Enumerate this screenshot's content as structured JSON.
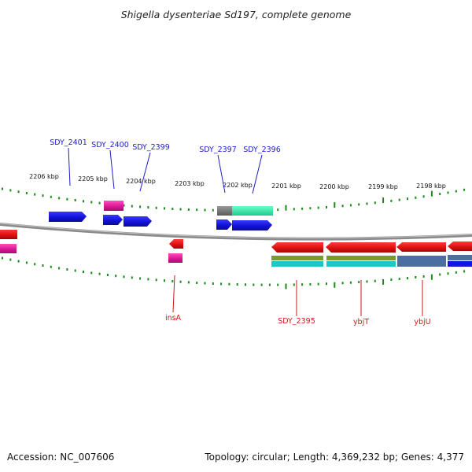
{
  "title": "Shigella dysenteriae Sd197, complete genome",
  "footer": {
    "accession": "Accession: NC_007606",
    "topology": "Topology: circular; Length: 4,369,232 bp; Genes: 4,377"
  },
  "ruler_labels": [
    "2206 kbp",
    "2205 kbp",
    "2204 kbp",
    "2203 kbp",
    "2202 kbp",
    "2201 kbp",
    "2200 kbp",
    "2199 kbp",
    "2198 kbp"
  ],
  "top_genes": [
    "SDY_2401",
    "SDY_2400",
    "SDY_2399",
    "SDY_2397",
    "SDY_2396"
  ],
  "bottom_genes": [
    "insA",
    "SDY_2395",
    "ybjT",
    "ybjU"
  ],
  "colors": {
    "plus_strand_gene": "#1515e0",
    "minus_strand_gene": "#e81010",
    "pseudo_gene": "#e0189a",
    "backbone": "#888888",
    "tick": "#1a8a1a",
    "top_label": "#1b1bc8",
    "bottom_label": "#c81b1b"
  }
}
